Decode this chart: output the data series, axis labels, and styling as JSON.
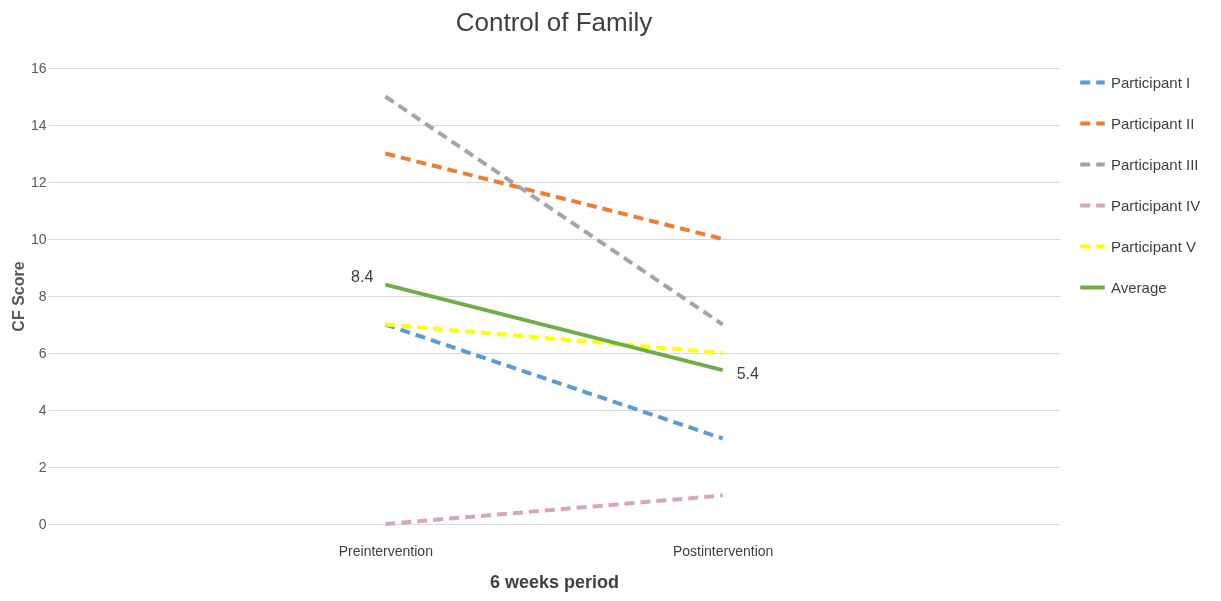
{
  "chart_data": {
    "type": "line",
    "title": "Control of Family",
    "xlabel": "6 weeks period",
    "ylabel": "CF Score",
    "categories": [
      "Preintervention",
      "Postintervention"
    ],
    "series": [
      {
        "name": "Participant I",
        "color": "#5b9bd5",
        "line_style": "dashed",
        "values": [
          7,
          3
        ]
      },
      {
        "name": "Participant II",
        "color": "#ed7d31",
        "line_style": "dashed",
        "values": [
          13,
          10
        ]
      },
      {
        "name": "Participant III",
        "color": "#a5a5a5",
        "line_style": "dashed",
        "values": [
          15,
          7
        ]
      },
      {
        "name": "Participant IV",
        "color": "#d5a6bd",
        "line_style": "dashed",
        "values": [
          0,
          1
        ]
      },
      {
        "name": "Participant V",
        "color": "#ffff00",
        "line_style": "dashed",
        "values": [
          7,
          6
        ]
      },
      {
        "name": "Average",
        "color": "#70ad47",
        "line_style": "solid",
        "values": [
          8.4,
          5.4
        ],
        "value_labels": [
          "8.4",
          "5.4"
        ]
      }
    ],
    "ylim": [
      0,
      16
    ],
    "yticks": [
      0,
      2,
      4,
      6,
      8,
      10,
      12,
      14,
      16
    ],
    "grid": "y",
    "legend": "right",
    "marker": "none"
  }
}
